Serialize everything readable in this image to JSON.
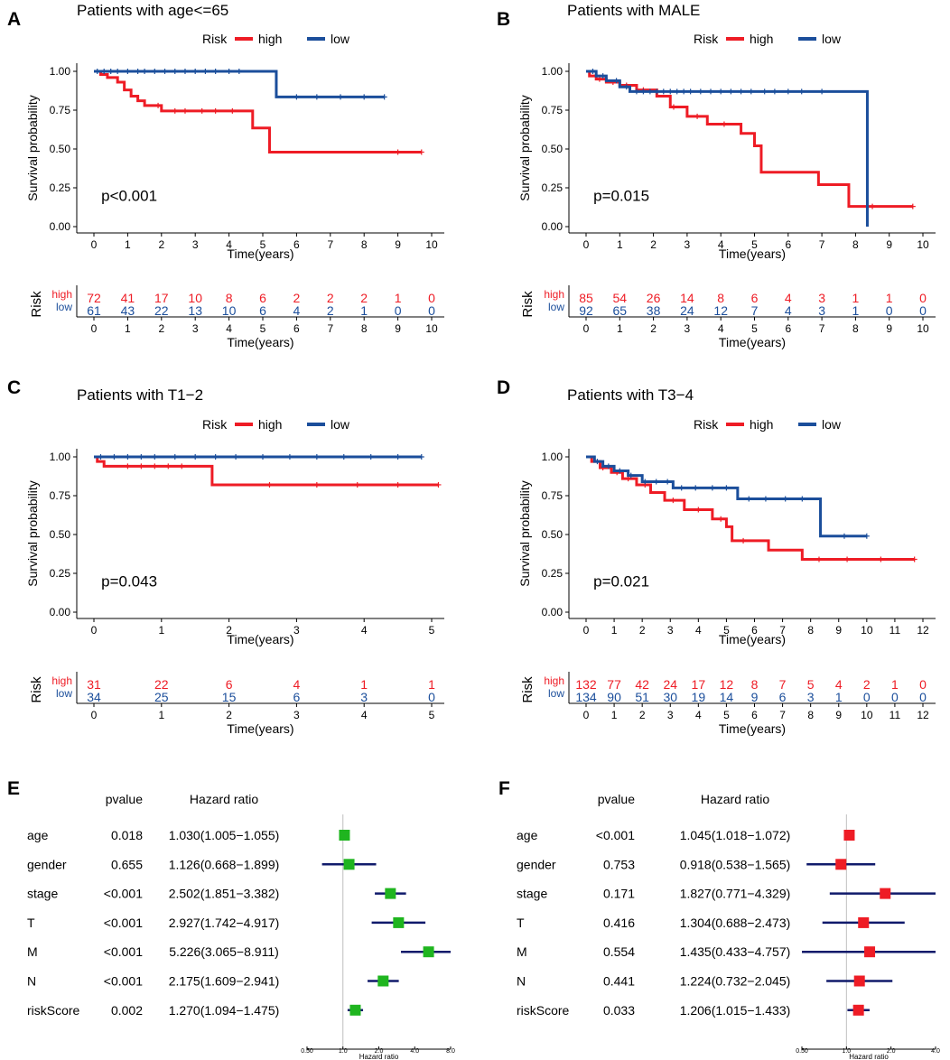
{
  "colors": {
    "high": "#ee1c25",
    "low": "#1b4e9b",
    "axis": "#000000",
    "forest_left": "#1fb51f",
    "forest_right": "#ee1c25",
    "ci": "#101a6b",
    "refline": "#bfbfbf"
  },
  "chart_data": [
    {
      "panel": "A",
      "type": "line",
      "title": "Patients with age<=65",
      "legend": {
        "title": "Risk",
        "entries": [
          "high",
          "low"
        ]
      },
      "xlabel": "Time(years)",
      "ylabel": "Survival probability",
      "xlim": [
        0,
        10
      ],
      "xticks": [
        0,
        1,
        2,
        3,
        4,
        5,
        6,
        7,
        8,
        9,
        10
      ],
      "ylim": [
        0,
        1
      ],
      "yticks": [
        "0.00",
        "0.25",
        "0.50",
        "0.75",
        "1.00"
      ],
      "pvalue": "p<0.001",
      "series": [
        {
          "name": "high",
          "x": [
            0,
            0.2,
            0.4,
            0.7,
            0.9,
            1.1,
            1.3,
            1.5,
            2.0,
            4.7,
            5.2,
            9.7
          ],
          "y": [
            1.0,
            0.98,
            0.96,
            0.93,
            0.88,
            0.84,
            0.81,
            0.78,
            0.745,
            0.635,
            0.48,
            0.48
          ],
          "censor_x": [
            1.9,
            2.4,
            2.7,
            3.2,
            3.6,
            4.1,
            9.0,
            9.7
          ]
        },
        {
          "name": "low",
          "x": [
            0,
            5.4,
            8.6
          ],
          "y": [
            1.0,
            0.835,
            0.835
          ],
          "censor_x": [
            0.1,
            0.3,
            0.5,
            0.7,
            1.0,
            1.3,
            1.5,
            1.8,
            2.1,
            2.4,
            2.7,
            3.0,
            3.3,
            3.6,
            4.0,
            4.3,
            6.0,
            6.6,
            7.3,
            8.0,
            8.6
          ]
        }
      ],
      "risk_table": {
        "label": "Risk",
        "xlabel": "Time(years)",
        "high": [
          "72",
          "41",
          "17",
          "10",
          "8",
          "6",
          "2",
          "2",
          "2",
          "1",
          "0"
        ],
        "low": [
          "61",
          "43",
          "22",
          "13",
          "10",
          "6",
          "4",
          "2",
          "1",
          "0",
          "0"
        ]
      }
    },
    {
      "panel": "B",
      "type": "line",
      "title": "Patients with MALE",
      "legend": {
        "title": "Risk",
        "entries": [
          "high",
          "low"
        ]
      },
      "xlabel": "Time(years)",
      "ylabel": "Survival probability",
      "xlim": [
        0,
        10
      ],
      "xticks": [
        0,
        1,
        2,
        3,
        4,
        5,
        6,
        7,
        8,
        9,
        10
      ],
      "ylim": [
        0,
        1
      ],
      "yticks": [
        "0.00",
        "0.25",
        "0.50",
        "0.75",
        "1.00"
      ],
      "pvalue": "p=0.015",
      "series": [
        {
          "name": "high",
          "x": [
            0,
            0.1,
            0.3,
            0.6,
            1.0,
            1.5,
            2.1,
            2.5,
            3.0,
            3.6,
            4.6,
            5.0,
            5.2,
            6.9,
            7.8,
            9.7
          ],
          "y": [
            1.0,
            0.97,
            0.95,
            0.93,
            0.91,
            0.88,
            0.84,
            0.77,
            0.71,
            0.66,
            0.6,
            0.52,
            0.35,
            0.27,
            0.13,
            0.13
          ],
          "censor_x": [
            0.4,
            0.8,
            1.2,
            1.7,
            2.6,
            3.3,
            4.1,
            8.5,
            9.7
          ]
        },
        {
          "name": "low",
          "x": [
            0,
            0.3,
            0.6,
            1.0,
            1.3,
            8.35,
            8.35
          ],
          "y": [
            1.0,
            0.97,
            0.94,
            0.9,
            0.87,
            0.87,
            0.0
          ],
          "censor_x": [
            0.2,
            0.5,
            0.9,
            1.2,
            1.5,
            1.7,
            1.9,
            2.1,
            2.3,
            2.5,
            2.7,
            2.9,
            3.1,
            3.4,
            3.7,
            4.0,
            4.3,
            4.6,
            4.9,
            5.3,
            5.6,
            6.0,
            6.4,
            7.0
          ]
        }
      ],
      "risk_table": {
        "label": "Risk",
        "xlabel": "Time(years)",
        "high": [
          "85",
          "54",
          "26",
          "14",
          "8",
          "6",
          "4",
          "3",
          "1",
          "1",
          "0"
        ],
        "low": [
          "92",
          "65",
          "38",
          "24",
          "12",
          "7",
          "4",
          "3",
          "1",
          "0",
          "0"
        ]
      }
    },
    {
      "panel": "C",
      "type": "line",
      "title": "Patients with T1−2",
      "legend": {
        "title": "Risk",
        "entries": [
          "high",
          "low"
        ]
      },
      "xlabel": "Time(years)",
      "ylabel": "Survival probability",
      "xlim": [
        0,
        5
      ],
      "xticks": [
        0,
        1,
        2,
        3,
        4,
        5
      ],
      "ylim": [
        0,
        1
      ],
      "yticks": [
        "0.00",
        "0.25",
        "0.50",
        "0.75",
        "1.00"
      ],
      "pvalue": "p=0.043",
      "series": [
        {
          "name": "high",
          "x": [
            0,
            0.05,
            0.15,
            1.75,
            5.1
          ],
          "y": [
            1.0,
            0.97,
            0.94,
            0.82,
            0.82
          ],
          "censor_x": [
            0.5,
            0.7,
            0.9,
            1.1,
            1.3,
            2.6,
            3.3,
            3.9,
            4.5,
            5.1
          ]
        },
        {
          "name": "low",
          "x": [
            0,
            4.85
          ],
          "y": [
            1.0,
            1.0
          ],
          "censor_x": [
            0.1,
            0.3,
            0.5,
            0.7,
            0.9,
            1.2,
            1.5,
            1.8,
            2.1,
            2.5,
            2.9,
            3.3,
            3.7,
            4.1,
            4.5,
            4.85
          ]
        }
      ],
      "risk_table": {
        "label": "Risk",
        "xlabel": "Time(years)",
        "high": [
          "31",
          "22",
          "6",
          "4",
          "1",
          "1"
        ],
        "low": [
          "34",
          "25",
          "15",
          "6",
          "3",
          "0"
        ]
      }
    },
    {
      "panel": "D",
      "type": "line",
      "title": "Patients with T3−4",
      "legend": {
        "title": "Risk",
        "entries": [
          "high",
          "low"
        ]
      },
      "xlabel": "Time(years)",
      "ylabel": "Survival probability",
      "xlim": [
        0,
        12
      ],
      "xticks": [
        0,
        1,
        2,
        3,
        4,
        5,
        6,
        7,
        8,
        9,
        10,
        11,
        12
      ],
      "ylim": [
        0,
        1
      ],
      "yticks": [
        "0.00",
        "0.25",
        "0.50",
        "0.75",
        "1.00"
      ],
      "pvalue": "p=0.021",
      "series": [
        {
          "name": "high",
          "x": [
            0,
            0.2,
            0.5,
            0.9,
            1.3,
            1.8,
            2.3,
            2.8,
            3.5,
            4.5,
            5.0,
            5.2,
            6.5,
            7.7,
            11.7
          ],
          "y": [
            1.0,
            0.97,
            0.93,
            0.9,
            0.86,
            0.82,
            0.77,
            0.72,
            0.66,
            0.6,
            0.55,
            0.46,
            0.4,
            0.34,
            0.34
          ],
          "censor_x": [
            0.6,
            1.1,
            1.5,
            2.1,
            3.1,
            4.0,
            4.8,
            5.6,
            8.3,
            9.3,
            10.5,
            11.7
          ]
        },
        {
          "name": "low",
          "x": [
            0,
            0.3,
            0.6,
            1.0,
            1.5,
            2.0,
            3.1,
            5.4,
            8.35,
            10.0
          ],
          "y": [
            1.0,
            0.97,
            0.94,
            0.91,
            0.88,
            0.84,
            0.8,
            0.73,
            0.49,
            0.49
          ],
          "censor_x": [
            0.4,
            0.8,
            1.2,
            1.6,
            2.1,
            2.5,
            2.9,
            3.4,
            3.9,
            4.5,
            5.0,
            5.8,
            6.4,
            7.1,
            7.7,
            9.2,
            10.0
          ]
        }
      ],
      "risk_table": {
        "label": "Risk",
        "xlabel": "Time(years)",
        "high": [
          "132",
          "77",
          "42",
          "24",
          "17",
          "12",
          "8",
          "7",
          "5",
          "4",
          "2",
          "1",
          "0"
        ],
        "low": [
          "134",
          "90",
          "51",
          "30",
          "19",
          "14",
          "9",
          "6",
          "3",
          "1",
          "0",
          "0",
          "0"
        ]
      }
    },
    {
      "panel": "E",
      "type": "forest",
      "headers": {
        "pvalue": "pvalue",
        "hr": "Hazard ratio"
      },
      "xlabel": "Hazard ratio",
      "xticks": [
        "0.50",
        "1.0",
        "2.0",
        "4.0",
        "8.0"
      ],
      "xlim": [
        0.5,
        8.0
      ],
      "rows": [
        {
          "label": "age",
          "pvalue": "0.018",
          "hr_text": "1.030(1.005−1.055)",
          "hr": 1.03,
          "low": 1.005,
          "high": 1.055
        },
        {
          "label": "gender",
          "pvalue": "0.655",
          "hr_text": "1.126(0.668−1.899)",
          "hr": 1.126,
          "low": 0.668,
          "high": 1.899
        },
        {
          "label": "stage",
          "pvalue": "<0.001",
          "hr_text": "2.502(1.851−3.382)",
          "hr": 2.502,
          "low": 1.851,
          "high": 3.382
        },
        {
          "label": "T",
          "pvalue": "<0.001",
          "hr_text": "2.927(1.742−4.917)",
          "hr": 2.927,
          "low": 1.742,
          "high": 4.917
        },
        {
          "label": "M",
          "pvalue": "<0.001",
          "hr_text": "5.226(3.065−8.911)",
          "hr": 5.226,
          "low": 3.065,
          "high": 8.911
        },
        {
          "label": "N",
          "pvalue": "<0.001",
          "hr_text": "2.175(1.609−2.941)",
          "hr": 2.175,
          "low": 1.609,
          "high": 2.941
        },
        {
          "label": "riskScore",
          "pvalue": "0.002",
          "hr_text": "1.270(1.094−1.475)",
          "hr": 1.27,
          "low": 1.094,
          "high": 1.475
        }
      ]
    },
    {
      "panel": "F",
      "type": "forest",
      "headers": {
        "pvalue": "pvalue",
        "hr": "Hazard ratio"
      },
      "xlabel": "Hazard ratio",
      "xticks": [
        "0.50",
        "1.0",
        "2.0",
        "4.0"
      ],
      "xlim": [
        0.5,
        4.0
      ],
      "rows": [
        {
          "label": "age",
          "pvalue": "<0.001",
          "hr_text": "1.045(1.018−1.072)",
          "hr": 1.045,
          "low": 1.018,
          "high": 1.072
        },
        {
          "label": "gender",
          "pvalue": "0.753",
          "hr_text": "0.918(0.538−1.565)",
          "hr": 0.918,
          "low": 0.538,
          "high": 1.565
        },
        {
          "label": "stage",
          "pvalue": "0.171",
          "hr_text": "1.827(0.771−4.329)",
          "hr": 1.827,
          "low": 0.771,
          "high": 4.329
        },
        {
          "label": "T",
          "pvalue": "0.416",
          "hr_text": "1.304(0.688−2.473)",
          "hr": 1.304,
          "low": 0.688,
          "high": 2.473
        },
        {
          "label": "M",
          "pvalue": "0.554",
          "hr_text": "1.435(0.433−4.757)",
          "hr": 1.435,
          "low": 0.433,
          "high": 4.757
        },
        {
          "label": "N",
          "pvalue": "0.441",
          "hr_text": "1.224(0.732−2.045)",
          "hr": 1.224,
          "low": 0.732,
          "high": 2.045
        },
        {
          "label": "riskScore",
          "pvalue": "0.033",
          "hr_text": "1.206(1.015−1.433)",
          "hr": 1.206,
          "low": 1.015,
          "high": 1.433
        }
      ]
    }
  ]
}
